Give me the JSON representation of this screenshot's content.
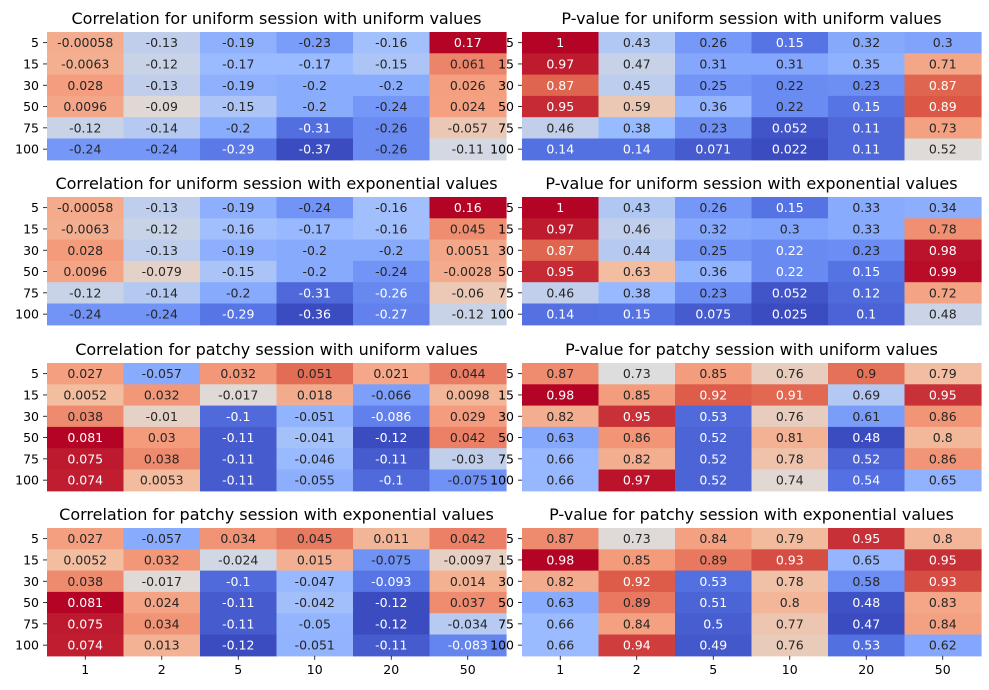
{
  "chart_data": [
    {
      "type": "heatmap",
      "title": "Correlation for uniform session with uniform values",
      "row_labels": [
        "5",
        "15",
        "30",
        "50",
        "75",
        "100"
      ],
      "col_labels": [
        "1",
        "2",
        "5",
        "10",
        "20",
        "50"
      ],
      "values": [
        [
          -0.00058,
          -0.13,
          -0.19,
          -0.23,
          -0.16,
          0.17
        ],
        [
          -0.0063,
          -0.12,
          -0.17,
          -0.17,
          -0.15,
          0.061
        ],
        [
          0.028,
          -0.13,
          -0.19,
          -0.2,
          -0.2,
          0.026
        ],
        [
          0.0096,
          -0.09,
          -0.15,
          -0.2,
          -0.24,
          0.024
        ],
        [
          -0.12,
          -0.14,
          -0.2,
          -0.31,
          -0.26,
          -0.057
        ],
        [
          -0.24,
          -0.24,
          -0.29,
          -0.37,
          -0.26,
          -0.11
        ]
      ],
      "labels": [
        [
          "-0.00058",
          "-0.13",
          "-0.19",
          "-0.23",
          "-0.16",
          "0.17"
        ],
        [
          "-0.0063",
          "-0.12",
          "-0.17",
          "-0.17",
          "-0.15",
          "0.061"
        ],
        [
          "0.028",
          "-0.13",
          "-0.19",
          "-0.2",
          "-0.2",
          "0.026"
        ],
        [
          "0.0096",
          "-0.09",
          "-0.15",
          "-0.2",
          "-0.24",
          "0.024"
        ],
        [
          "-0.12",
          "-0.14",
          "-0.2",
          "-0.31",
          "-0.26",
          "-0.057"
        ],
        [
          "-0.24",
          "-0.24",
          "-0.29",
          "-0.37",
          "-0.26",
          "-0.11"
        ]
      ],
      "colormap": "coolwarm",
      "show_xticks": false
    },
    {
      "type": "heatmap",
      "title": "P-value for uniform session with uniform values",
      "row_labels": [
        "5",
        "15",
        "30",
        "50",
        "75",
        "100"
      ],
      "col_labels": [
        "1",
        "2",
        "5",
        "10",
        "20",
        "50"
      ],
      "values": [
        [
          1,
          0.43,
          0.26,
          0.15,
          0.32,
          0.3
        ],
        [
          0.97,
          0.47,
          0.31,
          0.31,
          0.35,
          0.71
        ],
        [
          0.87,
          0.45,
          0.25,
          0.22,
          0.23,
          0.87
        ],
        [
          0.95,
          0.59,
          0.36,
          0.22,
          0.15,
          0.89
        ],
        [
          0.46,
          0.38,
          0.23,
          0.052,
          0.11,
          0.73
        ],
        [
          0.14,
          0.14,
          0.071,
          0.022,
          0.11,
          0.52
        ]
      ],
      "labels": [
        [
          "1",
          "0.43",
          "0.26",
          "0.15",
          "0.32",
          "0.3"
        ],
        [
          "0.97",
          "0.47",
          "0.31",
          "0.31",
          "0.35",
          "0.71"
        ],
        [
          "0.87",
          "0.45",
          "0.25",
          "0.22",
          "0.23",
          "0.87"
        ],
        [
          "0.95",
          "0.59",
          "0.36",
          "0.22",
          "0.15",
          "0.89"
        ],
        [
          "0.46",
          "0.38",
          "0.23",
          "0.052",
          "0.11",
          "0.73"
        ],
        [
          "0.14",
          "0.14",
          "0.071",
          "0.022",
          "0.11",
          "0.52"
        ]
      ],
      "colormap": "coolwarm",
      "show_xticks": false
    },
    {
      "type": "heatmap",
      "title": "Correlation for uniform session with exponential values",
      "row_labels": [
        "5",
        "15",
        "30",
        "50",
        "75",
        "100"
      ],
      "col_labels": [
        "1",
        "2",
        "5",
        "10",
        "20",
        "50"
      ],
      "values": [
        [
          -0.00058,
          -0.13,
          -0.19,
          -0.24,
          -0.16,
          0.16
        ],
        [
          -0.0063,
          -0.12,
          -0.16,
          -0.17,
          -0.16,
          0.045
        ],
        [
          0.028,
          -0.13,
          -0.19,
          -0.2,
          -0.2,
          0.0051
        ],
        [
          0.0096,
          -0.079,
          -0.15,
          -0.2,
          -0.24,
          -0.0028
        ],
        [
          -0.12,
          -0.14,
          -0.2,
          -0.31,
          -0.26,
          -0.06
        ],
        [
          -0.24,
          -0.24,
          -0.29,
          -0.36,
          -0.27,
          -0.12
        ]
      ],
      "labels": [
        [
          "-0.00058",
          "-0.13",
          "-0.19",
          "-0.24",
          "-0.16",
          "0.16"
        ],
        [
          "-0.0063",
          "-0.12",
          "-0.16",
          "-0.17",
          "-0.16",
          "0.045"
        ],
        [
          "0.028",
          "-0.13",
          "-0.19",
          "-0.2",
          "-0.2",
          "0.0051"
        ],
        [
          "0.0096",
          "-0.079",
          "-0.15",
          "-0.2",
          "-0.24",
          "-0.0028"
        ],
        [
          "-0.12",
          "-0.14",
          "-0.2",
          "-0.31",
          "-0.26",
          "-0.06"
        ],
        [
          "-0.24",
          "-0.24",
          "-0.29",
          "-0.36",
          "-0.27",
          "-0.12"
        ]
      ],
      "colormap": "coolwarm",
      "show_xticks": false
    },
    {
      "type": "heatmap",
      "title": "P-value for uniform session with exponential values",
      "row_labels": [
        "5",
        "15",
        "30",
        "50",
        "75",
        "100"
      ],
      "col_labels": [
        "1",
        "2",
        "5",
        "10",
        "20",
        "50"
      ],
      "values": [
        [
          1,
          0.43,
          0.26,
          0.15,
          0.33,
          0.34
        ],
        [
          0.97,
          0.46,
          0.32,
          0.3,
          0.33,
          0.78
        ],
        [
          0.87,
          0.44,
          0.25,
          0.22,
          0.23,
          0.98
        ],
        [
          0.95,
          0.63,
          0.36,
          0.22,
          0.15,
          0.99
        ],
        [
          0.46,
          0.38,
          0.23,
          0.052,
          0.12,
          0.72
        ],
        [
          0.14,
          0.15,
          0.075,
          0.025,
          0.1,
          0.48
        ]
      ],
      "labels": [
        [
          "1",
          "0.43",
          "0.26",
          "0.15",
          "0.33",
          "0.34"
        ],
        [
          "0.97",
          "0.46",
          "0.32",
          "0.3",
          "0.33",
          "0.78"
        ],
        [
          "0.87",
          "0.44",
          "0.25",
          "0.22",
          "0.23",
          "0.98"
        ],
        [
          "0.95",
          "0.63",
          "0.36",
          "0.22",
          "0.15",
          "0.99"
        ],
        [
          "0.46",
          "0.38",
          "0.23",
          "0.052",
          "0.12",
          "0.72"
        ],
        [
          "0.14",
          "0.15",
          "0.075",
          "0.025",
          "0.1",
          "0.48"
        ]
      ],
      "colormap": "coolwarm",
      "show_xticks": false
    },
    {
      "type": "heatmap",
      "title": "Correlation for patchy session with uniform values",
      "row_labels": [
        "5",
        "15",
        "30",
        "50",
        "75",
        "100"
      ],
      "col_labels": [
        "1",
        "2",
        "5",
        "10",
        "20",
        "50"
      ],
      "values": [
        [
          0.027,
          -0.057,
          0.032,
          0.051,
          0.021,
          0.044
        ],
        [
          0.0052,
          0.032,
          -0.017,
          0.018,
          -0.066,
          0.0098
        ],
        [
          0.038,
          -0.01,
          -0.1,
          -0.051,
          -0.086,
          0.029
        ],
        [
          0.081,
          0.03,
          -0.11,
          -0.041,
          -0.12,
          0.042
        ],
        [
          0.075,
          0.038,
          -0.11,
          -0.046,
          -0.11,
          -0.03
        ],
        [
          0.074,
          0.0053,
          -0.11,
          -0.055,
          -0.1,
          -0.075
        ]
      ],
      "labels": [
        [
          "0.027",
          "-0.057",
          "0.032",
          "0.051",
          "0.021",
          "0.044"
        ],
        [
          "0.0052",
          "0.032",
          "-0.017",
          "0.018",
          "-0.066",
          "0.0098"
        ],
        [
          "0.038",
          "-0.01",
          "-0.1",
          "-0.051",
          "-0.086",
          "0.029"
        ],
        [
          "0.081",
          "0.03",
          "-0.11",
          "-0.041",
          "-0.12",
          "0.042"
        ],
        [
          "0.075",
          "0.038",
          "-0.11",
          "-0.046",
          "-0.11",
          "-0.03"
        ],
        [
          "0.074",
          "0.0053",
          "-0.11",
          "-0.055",
          "-0.1",
          "-0.075"
        ]
      ],
      "colormap": "coolwarm",
      "show_xticks": false
    },
    {
      "type": "heatmap",
      "title": "P-value for patchy session with uniform values",
      "row_labels": [
        "5",
        "15",
        "30",
        "50",
        "75",
        "100"
      ],
      "col_labels": [
        "1",
        "2",
        "5",
        "10",
        "20",
        "50"
      ],
      "values": [
        [
          0.87,
          0.73,
          0.85,
          0.76,
          0.9,
          0.79
        ],
        [
          0.98,
          0.85,
          0.92,
          0.91,
          0.69,
          0.95
        ],
        [
          0.82,
          0.95,
          0.53,
          0.76,
          0.61,
          0.86
        ],
        [
          0.63,
          0.86,
          0.52,
          0.81,
          0.48,
          0.8
        ],
        [
          0.66,
          0.82,
          0.52,
          0.78,
          0.52,
          0.86
        ],
        [
          0.66,
          0.97,
          0.52,
          0.74,
          0.54,
          0.65
        ]
      ],
      "labels": [
        [
          "0.87",
          "0.73",
          "0.85",
          "0.76",
          "0.9",
          "0.79"
        ],
        [
          "0.98",
          "0.85",
          "0.92",
          "0.91",
          "0.69",
          "0.95"
        ],
        [
          "0.82",
          "0.95",
          "0.53",
          "0.76",
          "0.61",
          "0.86"
        ],
        [
          "0.63",
          "0.86",
          "0.52",
          "0.81",
          "0.48",
          "0.8"
        ],
        [
          "0.66",
          "0.82",
          "0.52",
          "0.78",
          "0.52",
          "0.86"
        ],
        [
          "0.66",
          "0.97",
          "0.52",
          "0.74",
          "0.54",
          "0.65"
        ]
      ],
      "colormap": "coolwarm",
      "show_xticks": false
    },
    {
      "type": "heatmap",
      "title": "Correlation for patchy session with exponential values",
      "row_labels": [
        "5",
        "15",
        "30",
        "50",
        "75",
        "100"
      ],
      "col_labels": [
        "1",
        "2",
        "5",
        "10",
        "20",
        "50"
      ],
      "values": [
        [
          0.027,
          -0.057,
          0.034,
          0.045,
          0.011,
          0.042
        ],
        [
          0.0052,
          0.032,
          -0.024,
          0.015,
          -0.075,
          -0.0097
        ],
        [
          0.038,
          -0.017,
          -0.1,
          -0.047,
          -0.093,
          0.014
        ],
        [
          0.081,
          0.024,
          -0.11,
          -0.042,
          -0.12,
          0.037
        ],
        [
          0.075,
          0.034,
          -0.11,
          -0.05,
          -0.12,
          -0.034
        ],
        [
          0.074,
          0.013,
          -0.12,
          -0.051,
          -0.11,
          -0.083
        ]
      ],
      "labels": [
        [
          "0.027",
          "-0.057",
          "0.034",
          "0.045",
          "0.011",
          "0.042"
        ],
        [
          "0.0052",
          "0.032",
          "-0.024",
          "0.015",
          "-0.075",
          "-0.0097"
        ],
        [
          "0.038",
          "-0.017",
          "-0.1",
          "-0.047",
          "-0.093",
          "0.014"
        ],
        [
          "0.081",
          "0.024",
          "-0.11",
          "-0.042",
          "-0.12",
          "0.037"
        ],
        [
          "0.075",
          "0.034",
          "-0.11",
          "-0.05",
          "-0.12",
          "-0.034"
        ],
        [
          "0.074",
          "0.013",
          "-0.12",
          "-0.051",
          "-0.11",
          "-0.083"
        ]
      ],
      "colormap": "coolwarm",
      "show_xticks": true
    },
    {
      "type": "heatmap",
      "title": "P-value for patchy session with exponential values",
      "row_labels": [
        "5",
        "15",
        "30",
        "50",
        "75",
        "100"
      ],
      "col_labels": [
        "1",
        "2",
        "5",
        "10",
        "20",
        "50"
      ],
      "values": [
        [
          0.87,
          0.73,
          0.84,
          0.79,
          0.95,
          0.8
        ],
        [
          0.98,
          0.85,
          0.89,
          0.93,
          0.65,
          0.95
        ],
        [
          0.82,
          0.92,
          0.53,
          0.78,
          0.58,
          0.93
        ],
        [
          0.63,
          0.89,
          0.51,
          0.8,
          0.48,
          0.83
        ],
        [
          0.66,
          0.84,
          0.5,
          0.77,
          0.47,
          0.84
        ],
        [
          0.66,
          0.94,
          0.49,
          0.76,
          0.53,
          0.62
        ]
      ],
      "labels": [
        [
          "0.87",
          "0.73",
          "0.84",
          "0.79",
          "0.95",
          "0.8"
        ],
        [
          "0.98",
          "0.85",
          "0.89",
          "0.93",
          "0.65",
          "0.95"
        ],
        [
          "0.82",
          "0.92",
          "0.53",
          "0.78",
          "0.58",
          "0.93"
        ],
        [
          "0.63",
          "0.89",
          "0.51",
          "0.8",
          "0.48",
          "0.83"
        ],
        [
          "0.66",
          "0.84",
          "0.5",
          "0.77",
          "0.47",
          "0.84"
        ],
        [
          "0.66",
          "0.94",
          "0.49",
          "0.76",
          "0.53",
          "0.62"
        ]
      ],
      "colormap": "coolwarm",
      "show_xticks": true
    }
  ]
}
